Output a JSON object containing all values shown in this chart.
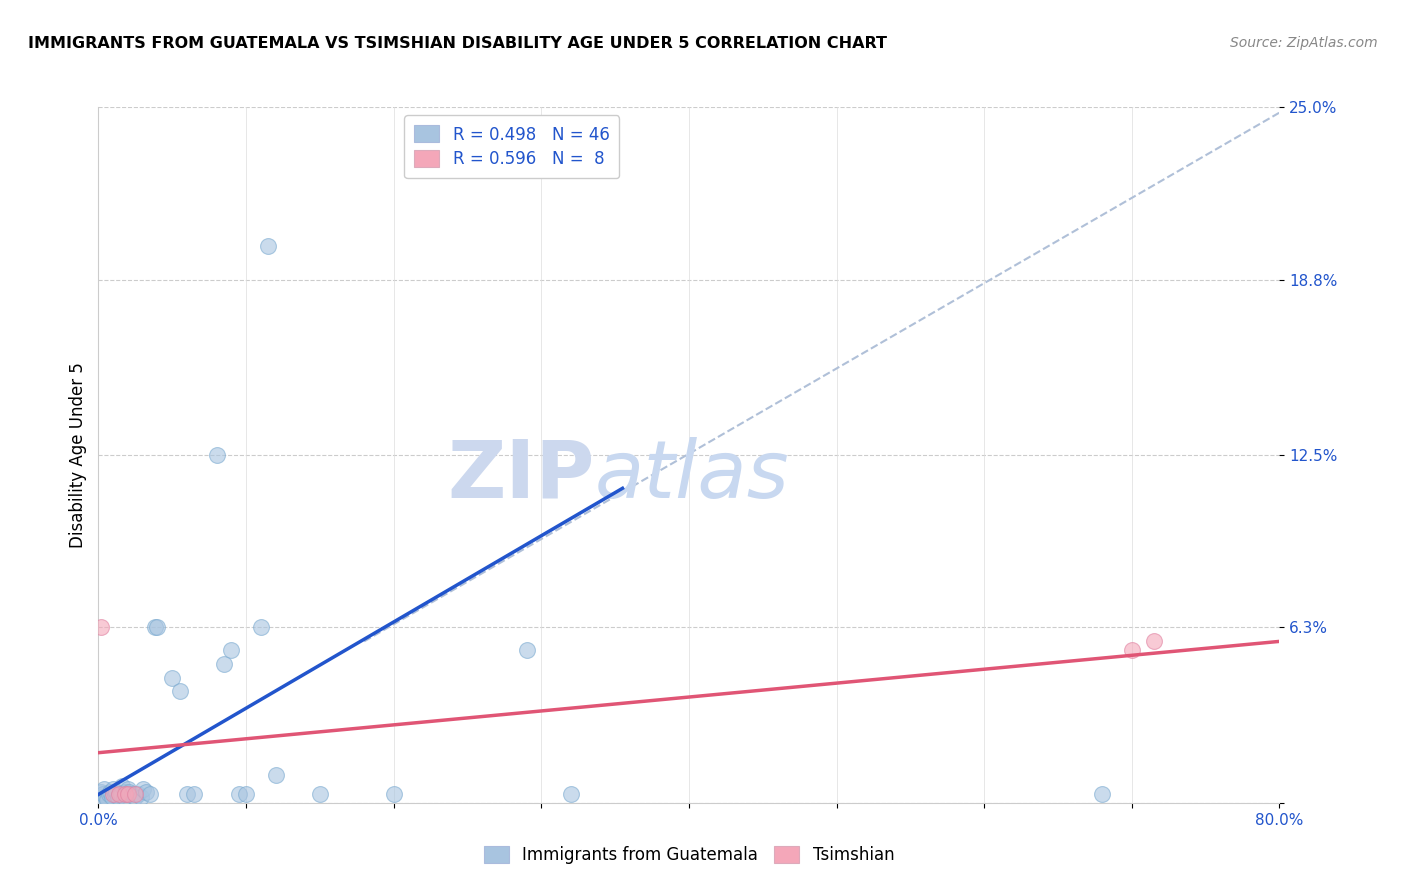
{
  "title": "IMMIGRANTS FROM GUATEMALA VS TSIMSHIAN DISABILITY AGE UNDER 5 CORRELATION CHART",
  "source": "Source: ZipAtlas.com",
  "ylabel": "Disability Age Under 5",
  "xmin": 0.0,
  "xmax": 0.8,
  "ymin": 0.0,
  "ymax": 0.25,
  "yticks": [
    0.0,
    0.063,
    0.125,
    0.188,
    0.25
  ],
  "yticklabels": [
    "",
    "6.3%",
    "12.5%",
    "18.8%",
    "25.0%"
  ],
  "R_blue": 0.498,
  "N_blue": 46,
  "R_pink": 0.596,
  "N_pink": 8,
  "blue_color": "#a8c4e0",
  "pink_color": "#f4a7b9",
  "blue_line_color": "#2255cc",
  "pink_line_color": "#e05575",
  "dashed_line_color": "#b0c0d8",
  "legend_text_color": "#2255cc",
  "watermark_color": "#ccd8ee",
  "blue_scatter": [
    [
      0.001,
      0.002
    ],
    [
      0.002,
      0.004
    ],
    [
      0.003,
      0.003
    ],
    [
      0.004,
      0.005
    ],
    [
      0.005,
      0.002
    ],
    [
      0.006,
      0.001
    ],
    [
      0.007,
      0.003
    ],
    [
      0.008,
      0.004
    ],
    [
      0.009,
      0.002
    ],
    [
      0.01,
      0.005
    ],
    [
      0.011,
      0.003
    ],
    [
      0.012,
      0.004
    ],
    [
      0.013,
      0.002
    ],
    [
      0.015,
      0.003
    ],
    [
      0.016,
      0.006
    ],
    [
      0.017,
      0.002
    ],
    [
      0.018,
      0.004
    ],
    [
      0.019,
      0.003
    ],
    [
      0.02,
      0.005
    ],
    [
      0.021,
      0.004
    ],
    [
      0.023,
      0.003
    ],
    [
      0.025,
      0.002
    ],
    [
      0.027,
      0.003
    ],
    [
      0.029,
      0.002
    ],
    [
      0.03,
      0.005
    ],
    [
      0.032,
      0.004
    ],
    [
      0.035,
      0.003
    ],
    [
      0.038,
      0.063
    ],
    [
      0.04,
      0.063
    ],
    [
      0.05,
      0.045
    ],
    [
      0.055,
      0.04
    ],
    [
      0.06,
      0.003
    ],
    [
      0.065,
      0.003
    ],
    [
      0.08,
      0.125
    ],
    [
      0.085,
      0.05
    ],
    [
      0.09,
      0.055
    ],
    [
      0.095,
      0.003
    ],
    [
      0.1,
      0.003
    ],
    [
      0.11,
      0.063
    ],
    [
      0.12,
      0.01
    ],
    [
      0.15,
      0.003
    ],
    [
      0.2,
      0.003
    ],
    [
      0.32,
      0.003
    ],
    [
      0.115,
      0.2
    ],
    [
      0.29,
      0.055
    ],
    [
      0.68,
      0.003
    ]
  ],
  "pink_scatter": [
    [
      0.002,
      0.063
    ],
    [
      0.01,
      0.003
    ],
    [
      0.014,
      0.003
    ],
    [
      0.018,
      0.003
    ],
    [
      0.02,
      0.003
    ],
    [
      0.025,
      0.003
    ],
    [
      0.7,
      0.055
    ],
    [
      0.715,
      0.058
    ]
  ],
  "blue_trend_x": [
    0.0,
    0.355
  ],
  "blue_trend_y": [
    0.003,
    0.113
  ],
  "dashed_trend_x": [
    0.18,
    0.8
  ],
  "dashed_trend_y": [
    0.058,
    0.248
  ],
  "pink_trend_x": [
    0.0,
    0.8
  ],
  "pink_trend_y": [
    0.018,
    0.058
  ]
}
